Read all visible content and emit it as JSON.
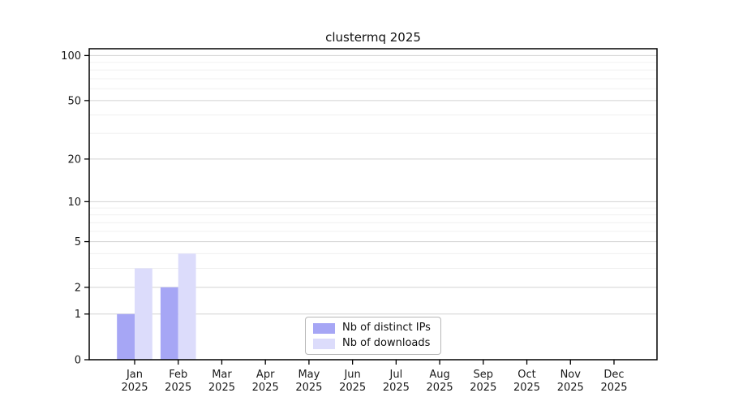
{
  "title": "clustermq 2025",
  "chart_data": {
    "type": "bar",
    "title": "clustermq 2025",
    "categories": [
      {
        "month": "Jan",
        "year": "2025"
      },
      {
        "month": "Feb",
        "year": "2025"
      },
      {
        "month": "Mar",
        "year": "2025"
      },
      {
        "month": "Apr",
        "year": "2025"
      },
      {
        "month": "May",
        "year": "2025"
      },
      {
        "month": "Jun",
        "year": "2025"
      },
      {
        "month": "Jul",
        "year": "2025"
      },
      {
        "month": "Aug",
        "year": "2025"
      },
      {
        "month": "Sep",
        "year": "2025"
      },
      {
        "month": "Oct",
        "year": "2025"
      },
      {
        "month": "Nov",
        "year": "2025"
      },
      {
        "month": "Dec",
        "year": "2025"
      }
    ],
    "series": [
      {
        "name": "Nb of distinct IPs",
        "color": "#a6a6f5",
        "values": [
          1,
          2,
          0,
          0,
          0,
          0,
          0,
          0,
          0,
          0,
          0,
          0
        ]
      },
      {
        "name": "Nb of downloads",
        "color": "#dcdcfb",
        "values": [
          3,
          4,
          0,
          0,
          0,
          0,
          0,
          0,
          0,
          0,
          0,
          0
        ]
      }
    ],
    "xlabel": "",
    "ylabel": "",
    "yscale": "log1p",
    "ylim": [
      0,
      111
    ],
    "yticks": [
      0,
      1,
      2,
      5,
      10,
      20,
      50,
      100
    ],
    "yticks_minor": [
      3,
      4,
      6,
      7,
      8,
      9,
      30,
      40,
      60,
      70,
      80,
      90
    ],
    "grid": true,
    "legend_position": "lower center",
    "colors": {
      "major_grid": "#d2d2d2",
      "minor_grid": "#f0f0f0",
      "spine": "#000000",
      "bar_distinct_ips": "#a6a6f5",
      "bar_downloads": "#dcdcfb"
    }
  }
}
